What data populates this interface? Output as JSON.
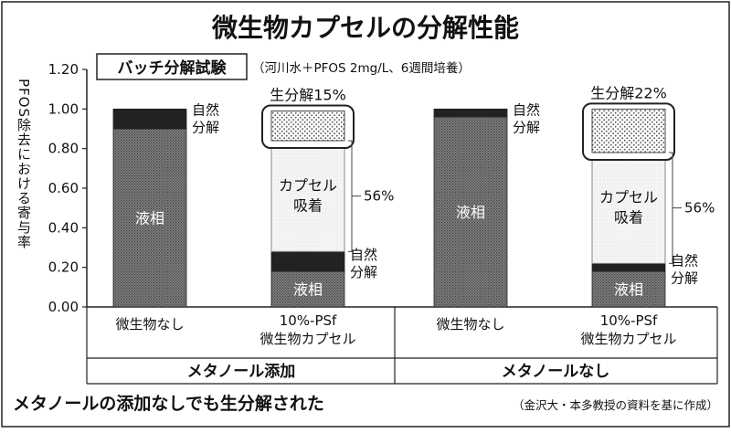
{
  "chart_data": {
    "type": "bar",
    "stacked": true,
    "title": "微生物カプセルの分解性能",
    "subtitle_box": "バッチ分解試験",
    "subtitle_note": "（河川水＋PFOS 2mg/L、6週間培養）",
    "ylabel": "PFOS除去における寄与率",
    "ylim": [
      0,
      1.2
    ],
    "yticks": [
      "0.00",
      "0.20",
      "0.40",
      "0.60",
      "0.80",
      "1.00",
      "1.20"
    ],
    "yticks_values": [
      0,
      0.2,
      0.4,
      0.6,
      0.8,
      1.0,
      1.2
    ],
    "groups": [
      "メタノール添加",
      "メタノールなし"
    ],
    "bars": [
      {
        "group": "メタノール添加",
        "label_lines": [
          "微生物なし"
        ],
        "segments": [
          {
            "component": "液相",
            "value": 0.9,
            "fill": "dense-hatch"
          },
          {
            "component": "自然分解",
            "value": 0.1,
            "fill": "dark"
          }
        ]
      },
      {
        "group": "メタノール添加",
        "label_lines": [
          "10%-PSf",
          "微生物カプセル"
        ],
        "segments": [
          {
            "component": "液相",
            "value": 0.18,
            "fill": "dense-hatch"
          },
          {
            "component": "自然分解",
            "value": 0.1,
            "fill": "dark"
          },
          {
            "component": "カプセル吸着",
            "value": 0.56,
            "fill": "light-dots"
          },
          {
            "component": "生分解",
            "value": 0.15,
            "fill": "dots"
          }
        ]
      },
      {
        "group": "メタノールなし",
        "label_lines": [
          "微生物なし"
        ],
        "segments": [
          {
            "component": "液相",
            "value": 0.96,
            "fill": "dense-hatch"
          },
          {
            "component": "自然分解",
            "value": 0.04,
            "fill": "dark"
          }
        ]
      },
      {
        "group": "メタノールなし",
        "label_lines": [
          "10%-PSf",
          "微生物カプセル"
        ],
        "segments": [
          {
            "component": "液相",
            "value": 0.18,
            "fill": "dense-hatch"
          },
          {
            "component": "自然分解",
            "value": 0.04,
            "fill": "dark"
          },
          {
            "component": "カプセル吸着",
            "value": 0.56,
            "fill": "light-dots"
          },
          {
            "component": "生分解",
            "value": 0.22,
            "fill": "dots"
          }
        ]
      }
    ],
    "annotations": {
      "liquid_phase": "液相",
      "natural_decomp": [
        "自然",
        "分解"
      ],
      "capsule_adsorption": [
        "カプセル",
        "吸着"
      ],
      "adsorption_pct": "56%",
      "biodegradation_1": "生分解15%",
      "biodegradation_2": "生分解22%"
    },
    "caption": "メタノールの添加なしでも生分解された",
    "source": "（金沢大・本多教授の資料を基に作成）"
  }
}
